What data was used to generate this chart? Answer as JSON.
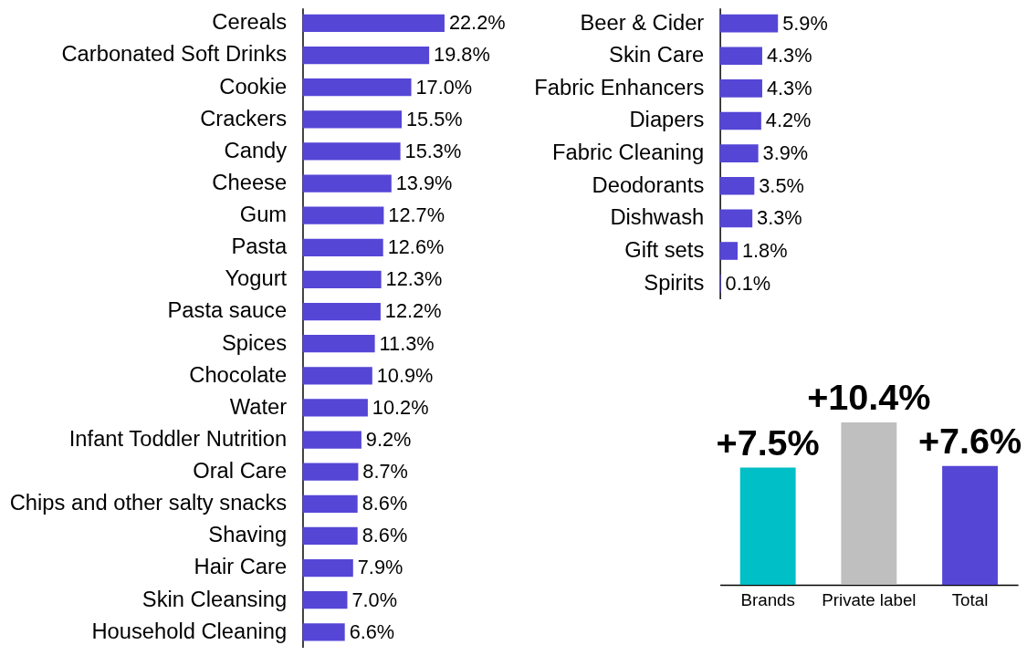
{
  "chart_data": [
    {
      "type": "bar",
      "orientation": "horizontal",
      "categories": [
        "Cereals",
        "Carbonated Soft Drinks",
        "Cookie",
        "Crackers",
        "Candy",
        "Cheese",
        "Gum",
        "Pasta",
        "Yogurt",
        "Pasta sauce",
        "Spices",
        "Chocolate",
        "Water",
        "Infant Toddler Nutrition",
        "Oral Care",
        "Chips and other salty snacks",
        "Shaving",
        "Hair Care",
        "Skin Cleansing",
        "Household Cleaning"
      ],
      "values": [
        22.2,
        19.8,
        17.0,
        15.5,
        15.3,
        13.9,
        12.7,
        12.6,
        12.3,
        12.2,
        11.3,
        10.9,
        10.2,
        9.2,
        8.7,
        8.6,
        8.6,
        7.9,
        7.0,
        6.6
      ],
      "value_labels": [
        "22.2%",
        "19.8%",
        "17.0%",
        "15.5%",
        "15.3%",
        "13.9%",
        "12.7%",
        "12.6%",
        "12.3%",
        "12.2%",
        "11.3%",
        "10.9%",
        "10.2%",
        "9.2%",
        "8.7%",
        "8.6%",
        "8.6%",
        "7.9%",
        "7.0%",
        "6.6%"
      ],
      "color": "#5546d6",
      "tick_labels": "y"
    },
    {
      "type": "bar",
      "orientation": "horizontal",
      "categories": [
        "Beer & Cider",
        "Skin Care",
        "Fabric Enhancers",
        "Diapers",
        "Fabric Cleaning",
        "Deodorants",
        "Dishwash",
        "Gift sets",
        "Spirits"
      ],
      "values": [
        5.9,
        4.3,
        4.3,
        4.2,
        3.9,
        3.5,
        3.3,
        1.8,
        0.1
      ],
      "value_labels": [
        "5.9%",
        "4.3%",
        "4.3%",
        "4.2%",
        "3.9%",
        "3.5%",
        "3.3%",
        "1.8%",
        "0.1%"
      ],
      "color": "#5546d6",
      "tick_labels": "y"
    },
    {
      "type": "bar",
      "categories": [
        "Brands",
        "Private label",
        "Total"
      ],
      "values": [
        7.5,
        10.4,
        7.6
      ],
      "value_labels": [
        "+7.5%",
        "+10.4%",
        "+7.6%"
      ],
      "colors": [
        "#00bfc6",
        "#bfbfbf",
        "#5546d6"
      ],
      "tick_labels": "x"
    }
  ]
}
